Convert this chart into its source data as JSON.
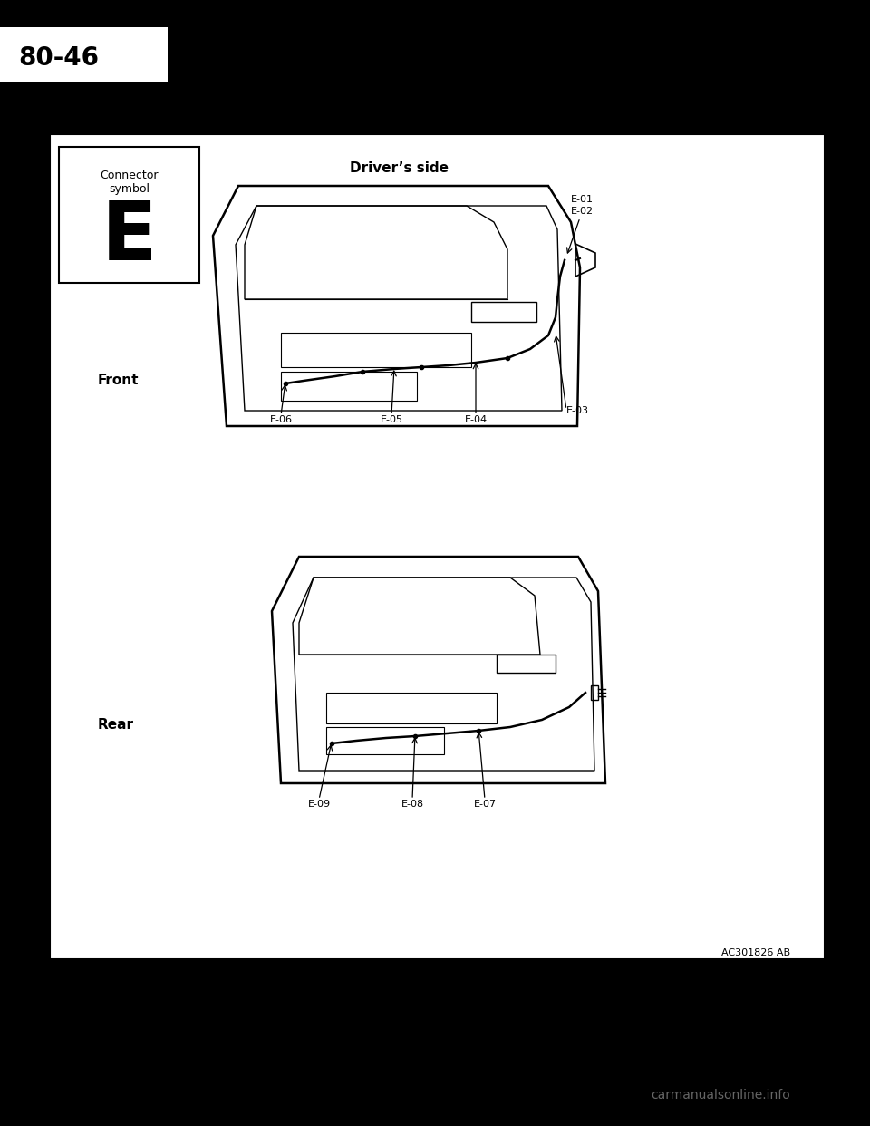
{
  "bg_color": "#000000",
  "page_bg": "#ffffff",
  "page_number": "80-46",
  "connector_symbol_label": "Connector\nsymbol",
  "connector_letter": "E",
  "drivers_side_label": "Driver’s side",
  "front_label": "Front",
  "rear_label": "Rear",
  "reference": "AC301826 AB",
  "watermark": "carmanualsonline.info",
  "front_connectors": [
    "E-01",
    "E-02",
    "E-03",
    "E-04",
    "E-05",
    "E-06"
  ],
  "rear_connectors": [
    "E-07",
    "E-08",
    "E-09"
  ]
}
